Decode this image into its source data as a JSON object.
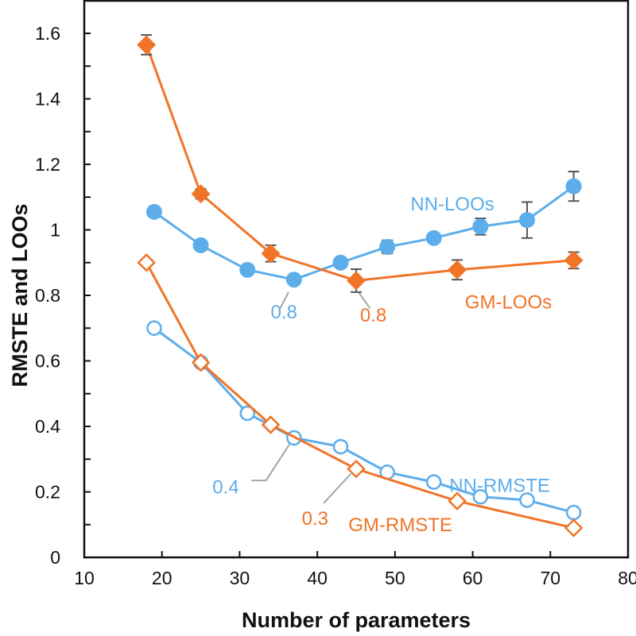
{
  "chart_data": {
    "type": "line",
    "title": "",
    "xlabel": "Number of parameters",
    "ylabel": "RMSTE and LOOs",
    "xlim": [
      10,
      80
    ],
    "ylim": [
      0,
      1.7
    ],
    "xticks": [
      10,
      20,
      30,
      40,
      50,
      60,
      70,
      80
    ],
    "yticks": [
      0,
      0.2,
      0.4,
      0.6,
      0.8,
      1,
      1.2,
      1.4,
      1.6
    ],
    "ytick_labels": [
      "0",
      "0.2",
      "0.4",
      "0.6",
      "0.8",
      "1",
      "1.2",
      "1.4",
      "1.6"
    ],
    "grid": false,
    "colors": {
      "orange": "#F07428",
      "blue": "#5DADEB",
      "error": "#555555",
      "leader": "#A0A8A8"
    },
    "series": [
      {
        "name": "GM-LOOs",
        "color": "#F07428",
        "marker": "diamond-filled",
        "x": [
          18,
          25,
          34,
          45,
          58,
          73
        ],
        "y": [
          1.565,
          1.11,
          0.928,
          0.845,
          0.878,
          0.907
        ],
        "err": [
          0.03,
          0.015,
          0.025,
          0.035,
          0.03,
          0.025
        ]
      },
      {
        "name": "NN-LOOs",
        "color": "#5DADEB",
        "marker": "circle-filled",
        "x": [
          19,
          25,
          31,
          37,
          43,
          49,
          55,
          61,
          67,
          73
        ],
        "y": [
          1.055,
          0.953,
          0.878,
          0.848,
          0.9,
          0.948,
          0.975,
          1.01,
          1.03,
          1.133
        ],
        "err": [
          0,
          0,
          0,
          0,
          0,
          0.02,
          0.012,
          0.025,
          0.055,
          0.045
        ]
      },
      {
        "name": "GM-RMSTE",
        "color": "#F07428",
        "marker": "diamond-open",
        "x": [
          18,
          25,
          34,
          45,
          58,
          73
        ],
        "y": [
          0.9,
          0.595,
          0.405,
          0.27,
          0.172,
          0.09
        ]
      },
      {
        "name": "NN-RMSTE",
        "color": "#5DADEB",
        "marker": "circle-open",
        "x": [
          19,
          25,
          31,
          37,
          43,
          49,
          55,
          61,
          67,
          73
        ],
        "y": [
          0.7,
          0.595,
          0.44,
          0.365,
          0.338,
          0.26,
          0.23,
          0.185,
          0.175,
          0.137
        ]
      }
    ],
    "series_labels": [
      {
        "text": "NN-LOOs",
        "color": "#5DADEB",
        "at": [
          52,
          1.06
        ]
      },
      {
        "text": "GM-LOOs",
        "color": "#F07428",
        "at": [
          59,
          0.76
        ]
      },
      {
        "text": "NN-RMSTE",
        "color": "#5DADEB",
        "at": [
          57,
          0.2
        ]
      },
      {
        "text": "GM-RMSTE",
        "color": "#F07428",
        "at": [
          44,
          0.08
        ]
      }
    ],
    "annotations": [
      {
        "text": "0.8",
        "color": "#5DADEB",
        "point": [
          37,
          0.848
        ],
        "at": [
          34,
          0.73
        ],
        "leader": [
          [
            36.3,
            0.81
          ],
          [
            35.2,
            0.76
          ]
        ]
      },
      {
        "text": "0.8",
        "color": "#F07428",
        "point": [
          45,
          0.845
        ],
        "at": [
          45.5,
          0.72
        ],
        "leader": [
          [
            45.3,
            0.81
          ],
          [
            46.8,
            0.76
          ]
        ]
      },
      {
        "text": "0.4",
        "color": "#5DADEB",
        "point": [
          37,
          0.365
        ],
        "at": [
          26.5,
          0.195
        ],
        "leader": [
          [
            36.4,
            0.345
          ],
          [
            33.4,
            0.235
          ],
          [
            31.5,
            0.235
          ]
        ]
      },
      {
        "text": "0.3",
        "color": "#F07428",
        "point": [
          45,
          0.27
        ],
        "at": [
          38,
          0.1
        ],
        "leader": [
          [
            44.3,
            0.255
          ],
          [
            40.8,
            0.165
          ]
        ]
      }
    ]
  }
}
